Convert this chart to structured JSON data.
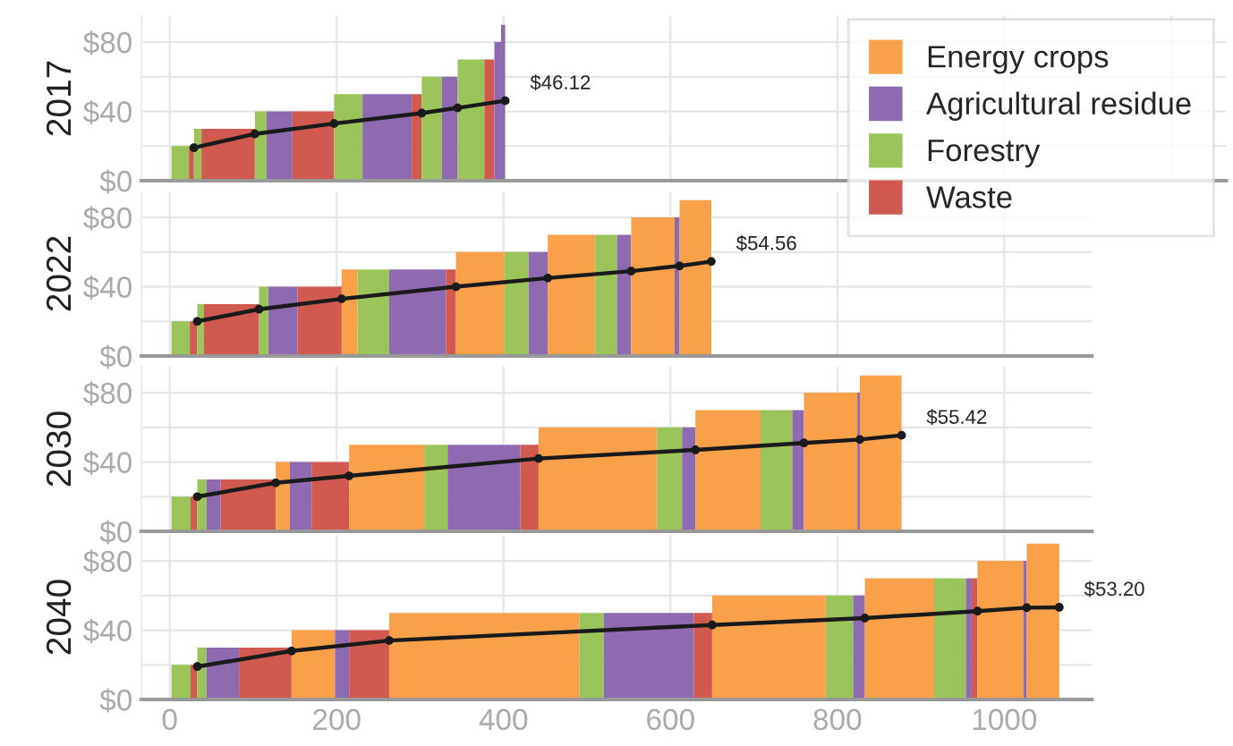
{
  "chart_data": [
    {
      "type": "area",
      "ylabel": "2017",
      "xlim": [
        -34,
        1266
      ],
      "ylim": [
        0,
        95
      ],
      "xticks": [
        0,
        200,
        400,
        600,
        800,
        1000,
        1200
      ],
      "yticks": [
        {
          "value": 0,
          "label": "$0"
        },
        {
          "value": 20,
          "label": null
        },
        {
          "value": 40,
          "label": "$40"
        },
        {
          "value": 60,
          "label": null
        },
        {
          "value": 80,
          "label": "$80"
        }
      ],
      "tick_labels": "y",
      "grid": true,
      "series": [
        {
          "color": "#9bc45a",
          "x": [
            2,
            23
          ],
          "values": [
            20,
            20
          ]
        },
        {
          "color": "#d05a50",
          "x": [
            23,
            29
          ],
          "values": [
            20,
            20
          ]
        },
        {
          "color": "#9bc45a",
          "x": [
            29,
            38
          ],
          "values": [
            30,
            30
          ]
        },
        {
          "color": "#d05a50",
          "x": [
            38,
            102
          ],
          "values": [
            30,
            30
          ]
        },
        {
          "color": "#9bc45a",
          "x": [
            102,
            116
          ],
          "values": [
            40,
            40
          ]
        },
        {
          "color": "#8e6bb0",
          "x": [
            116,
            147
          ],
          "values": [
            40,
            40
          ]
        },
        {
          "color": "#d05a50",
          "x": [
            147,
            197
          ],
          "values": [
            40,
            40
          ]
        },
        {
          "color": "#9bc45a",
          "x": [
            197,
            231
          ],
          "values": [
            50,
            50
          ]
        },
        {
          "color": "#8e6bb0",
          "x": [
            231,
            290
          ],
          "values": [
            50,
            50
          ]
        },
        {
          "color": "#d05a50",
          "x": [
            290,
            302
          ],
          "values": [
            50,
            50
          ]
        },
        {
          "color": "#9bc45a",
          "x": [
            302,
            326
          ],
          "values": [
            60,
            60
          ]
        },
        {
          "color": "#8e6bb0",
          "x": [
            326,
            345
          ],
          "values": [
            60,
            60
          ]
        },
        {
          "color": "#9bc45a",
          "x": [
            345,
            377
          ],
          "values": [
            70,
            70
          ]
        },
        {
          "color": "#d05a50",
          "x": [
            377,
            389
          ],
          "values": [
            70,
            70
          ]
        },
        {
          "color": "#8e6bb0",
          "x": [
            389,
            397
          ],
          "values": [
            80,
            80
          ]
        },
        {
          "color": "#8e6bb0",
          "x": [
            397,
            402
          ],
          "values": [
            90,
            90
          ]
        },
        {
          "type": "line",
          "color": "#1a1a1a",
          "marker": "circle",
          "x": [
            29,
            102,
            197,
            302,
            345,
            402
          ],
          "values": [
            19,
            27,
            33,
            39,
            42,
            46.12
          ]
        }
      ],
      "annotations": [
        {
          "text": "$46.12",
          "x": 402,
          "y": 46.12
        }
      ]
    },
    {
      "type": "area",
      "ylabel": "2022",
      "xlim": [
        -34,
        1105
      ],
      "ylim": [
        0,
        95
      ],
      "xticks": [
        0,
        200,
        400,
        600,
        800,
        1000
      ],
      "yticks": [
        {
          "value": 0,
          "label": "$0"
        },
        {
          "value": 20,
          "label": null
        },
        {
          "value": 40,
          "label": "$40"
        },
        {
          "value": 60,
          "label": null
        },
        {
          "value": 80,
          "label": "$80"
        }
      ],
      "tick_labels": "y",
      "grid": true,
      "legend": "top right",
      "series": [
        {
          "name": "Energy crops",
          "color": "#f9a04b",
          "x": [
            206,
            225
          ],
          "values": [
            50,
            50
          ]
        },
        {
          "name": "Agricultural residue",
          "color": "#8e6bb0",
          "x": [
            118,
            153
          ],
          "values": [
            40,
            40
          ]
        },
        {
          "name": "Forestry",
          "color": "#9bc45a",
          "x": [
            2,
            24
          ],
          "values": [
            20,
            20
          ]
        },
        {
          "name": "Waste",
          "color": "#d05a50",
          "x": [
            24,
            33
          ],
          "values": [
            20,
            20
          ]
        },
        {
          "color": "#9bc45a",
          "x": [
            33,
            41
          ],
          "values": [
            30,
            30
          ]
        },
        {
          "color": "#d05a50",
          "x": [
            41,
            107
          ],
          "values": [
            30,
            30
          ]
        },
        {
          "color": "#9bc45a",
          "x": [
            107,
            118
          ],
          "values": [
            40,
            40
          ]
        },
        {
          "color": "#d05a50",
          "x": [
            153,
            206
          ],
          "values": [
            40,
            40
          ]
        },
        {
          "color": "#9bc45a",
          "x": [
            225,
            263
          ],
          "values": [
            50,
            50
          ]
        },
        {
          "color": "#8e6bb0",
          "x": [
            263,
            331
          ],
          "values": [
            50,
            50
          ]
        },
        {
          "color": "#d05a50",
          "x": [
            331,
            343
          ],
          "values": [
            50,
            50
          ]
        },
        {
          "color": "#f9a04b",
          "x": [
            343,
            401
          ],
          "values": [
            60,
            60
          ]
        },
        {
          "color": "#9bc45a",
          "x": [
            401,
            430
          ],
          "values": [
            60,
            60
          ]
        },
        {
          "color": "#8e6bb0",
          "x": [
            430,
            453
          ],
          "values": [
            60,
            60
          ]
        },
        {
          "color": "#f9a04b",
          "x": [
            453,
            510
          ],
          "values": [
            70,
            70
          ]
        },
        {
          "color": "#9bc45a",
          "x": [
            510,
            536
          ],
          "values": [
            70,
            70
          ]
        },
        {
          "color": "#8e6bb0",
          "x": [
            536,
            553
          ],
          "values": [
            70,
            70
          ]
        },
        {
          "color": "#f9a04b",
          "x": [
            553,
            605
          ],
          "values": [
            80,
            80
          ]
        },
        {
          "color": "#8e6bb0",
          "x": [
            605,
            611
          ],
          "values": [
            80,
            80
          ]
        },
        {
          "color": "#f9a04b",
          "x": [
            611,
            649
          ],
          "values": [
            90,
            90
          ]
        },
        {
          "type": "line",
          "color": "#1a1a1a",
          "marker": "circle",
          "x": [
            33,
            107,
            206,
            343,
            453,
            553,
            611,
            649
          ],
          "values": [
            20,
            27,
            33,
            40,
            45,
            49,
            52,
            54.56
          ]
        }
      ],
      "annotations": [
        {
          "text": "$54.56",
          "x": 649,
          "y": 54.56
        }
      ]
    },
    {
      "type": "area",
      "ylabel": "2030",
      "xlim": [
        -34,
        1105
      ],
      "ylim": [
        0,
        95
      ],
      "xticks": [
        0,
        200,
        400,
        600,
        800,
        1000
      ],
      "yticks": [
        {
          "value": 0,
          "label": "$0"
        },
        {
          "value": 20,
          "label": null
        },
        {
          "value": 40,
          "label": "$40"
        },
        {
          "value": 60,
          "label": null
        },
        {
          "value": 80,
          "label": "$80"
        }
      ],
      "tick_labels": "y",
      "grid": true,
      "series": [
        {
          "color": "#9bc45a",
          "x": [
            2,
            25
          ],
          "values": [
            20,
            20
          ]
        },
        {
          "color": "#d05a50",
          "x": [
            25,
            33
          ],
          "values": [
            20,
            20
          ]
        },
        {
          "color": "#9bc45a",
          "x": [
            33,
            44
          ],
          "values": [
            30,
            30
          ]
        },
        {
          "color": "#8e6bb0",
          "x": [
            44,
            61
          ],
          "values": [
            30,
            30
          ]
        },
        {
          "color": "#d05a50",
          "x": [
            61,
            127
          ],
          "values": [
            30,
            30
          ]
        },
        {
          "color": "#f9a04b",
          "x": [
            127,
            144
          ],
          "values": [
            40,
            40
          ]
        },
        {
          "color": "#8e6bb0",
          "x": [
            144,
            170
          ],
          "values": [
            40,
            40
          ]
        },
        {
          "color": "#d05a50",
          "x": [
            170,
            215
          ],
          "values": [
            40,
            40
          ]
        },
        {
          "color": "#f9a04b",
          "x": [
            215,
            305
          ],
          "values": [
            50,
            50
          ]
        },
        {
          "color": "#9bc45a",
          "x": [
            305,
            333
          ],
          "values": [
            50,
            50
          ]
        },
        {
          "color": "#8e6bb0",
          "x": [
            333,
            420
          ],
          "values": [
            50,
            50
          ]
        },
        {
          "color": "#d05a50",
          "x": [
            420,
            442
          ],
          "values": [
            50,
            50
          ]
        },
        {
          "color": "#f9a04b",
          "x": [
            442,
            584
          ],
          "values": [
            60,
            60
          ]
        },
        {
          "color": "#9bc45a",
          "x": [
            584,
            614
          ],
          "values": [
            60,
            60
          ]
        },
        {
          "color": "#8e6bb0",
          "x": [
            614,
            630
          ],
          "values": [
            60,
            60
          ]
        },
        {
          "color": "#f9a04b",
          "x": [
            630,
            708
          ],
          "values": [
            70,
            70
          ]
        },
        {
          "color": "#9bc45a",
          "x": [
            708,
            746
          ],
          "values": [
            70,
            70
          ]
        },
        {
          "color": "#8e6bb0",
          "x": [
            746,
            760
          ],
          "values": [
            70,
            70
          ]
        },
        {
          "color": "#f9a04b",
          "x": [
            760,
            824
          ],
          "values": [
            80,
            80
          ]
        },
        {
          "color": "#8e6bb0",
          "x": [
            824,
            827
          ],
          "values": [
            80,
            80
          ]
        },
        {
          "color": "#f9a04b",
          "x": [
            827,
            877
          ],
          "values": [
            90,
            90
          ]
        },
        {
          "type": "line",
          "color": "#1a1a1a",
          "marker": "circle",
          "x": [
            33,
            127,
            215,
            442,
            630,
            760,
            827,
            877
          ],
          "values": [
            20,
            28,
            32,
            42,
            47,
            51,
            53,
            55.42
          ]
        }
      ],
      "annotations": [
        {
          "text": "$55.42",
          "x": 877,
          "y": 55.42
        }
      ]
    },
    {
      "type": "area",
      "ylabel": "2040",
      "xlim": [
        -34,
        1105
      ],
      "ylim": [
        0,
        95
      ],
      "xticks": [
        0,
        200,
        400,
        600,
        800,
        1000
      ],
      "yticks": [
        {
          "value": 0,
          "label": "$0"
        },
        {
          "value": 20,
          "label": null
        },
        {
          "value": 40,
          "label": "$40"
        },
        {
          "value": 60,
          "label": null
        },
        {
          "value": 80,
          "label": "$80"
        }
      ],
      "grid": true,
      "series": [
        {
          "color": "#9bc45a",
          "x": [
            2,
            25
          ],
          "values": [
            20,
            20
          ]
        },
        {
          "color": "#d05a50",
          "x": [
            25,
            33
          ],
          "values": [
            20,
            20
          ]
        },
        {
          "color": "#9bc45a",
          "x": [
            33,
            44
          ],
          "values": [
            30,
            30
          ]
        },
        {
          "color": "#8e6bb0",
          "x": [
            44,
            83
          ],
          "values": [
            30,
            30
          ]
        },
        {
          "color": "#d05a50",
          "x": [
            83,
            146
          ],
          "values": [
            30,
            30
          ]
        },
        {
          "color": "#f9a04b",
          "x": [
            146,
            198
          ],
          "values": [
            40,
            40
          ]
        },
        {
          "color": "#8e6bb0",
          "x": [
            198,
            215
          ],
          "values": [
            40,
            40
          ]
        },
        {
          "color": "#d05a50",
          "x": [
            215,
            263
          ],
          "values": [
            40,
            40
          ]
        },
        {
          "color": "#f9a04b",
          "x": [
            263,
            491
          ],
          "values": [
            50,
            50
          ]
        },
        {
          "color": "#9bc45a",
          "x": [
            491,
            520
          ],
          "values": [
            50,
            50
          ]
        },
        {
          "color": "#8e6bb0",
          "x": [
            520,
            628
          ],
          "values": [
            50,
            50
          ]
        },
        {
          "color": "#d05a50",
          "x": [
            628,
            650
          ],
          "values": [
            50,
            50
          ]
        },
        {
          "color": "#f9a04b",
          "x": [
            650,
            786
          ],
          "values": [
            60,
            60
          ]
        },
        {
          "color": "#9bc45a",
          "x": [
            786,
            819
          ],
          "values": [
            60,
            60
          ]
        },
        {
          "color": "#8e6bb0",
          "x": [
            819,
            833
          ],
          "values": [
            60,
            60
          ]
        },
        {
          "color": "#f9a04b",
          "x": [
            833,
            916
          ],
          "values": [
            70,
            70
          ]
        },
        {
          "color": "#9bc45a",
          "x": [
            916,
            954
          ],
          "values": [
            70,
            70
          ]
        },
        {
          "color": "#8e6bb0",
          "x": [
            954,
            961
          ],
          "values": [
            70,
            70
          ]
        },
        {
          "color": "#d05a50",
          "x": [
            961,
            968
          ],
          "values": [
            70,
            70
          ]
        },
        {
          "color": "#f9a04b",
          "x": [
            968,
            1023
          ],
          "values": [
            80,
            80
          ]
        },
        {
          "color": "#8e6bb0",
          "x": [
            1023,
            1027
          ],
          "values": [
            80,
            80
          ]
        },
        {
          "color": "#f9a04b",
          "x": [
            1027,
            1066
          ],
          "values": [
            90,
            90
          ]
        },
        {
          "type": "line",
          "color": "#1a1a1a",
          "marker": "circle",
          "x": [
            33,
            146,
            263,
            650,
            833,
            968,
            1027,
            1066
          ],
          "values": [
            19,
            28,
            34,
            43,
            47,
            51,
            53,
            53.2
          ]
        }
      ],
      "annotations": [
        {
          "text": "$53.20",
          "x": 1066,
          "y": 53.2
        }
      ]
    }
  ]
}
